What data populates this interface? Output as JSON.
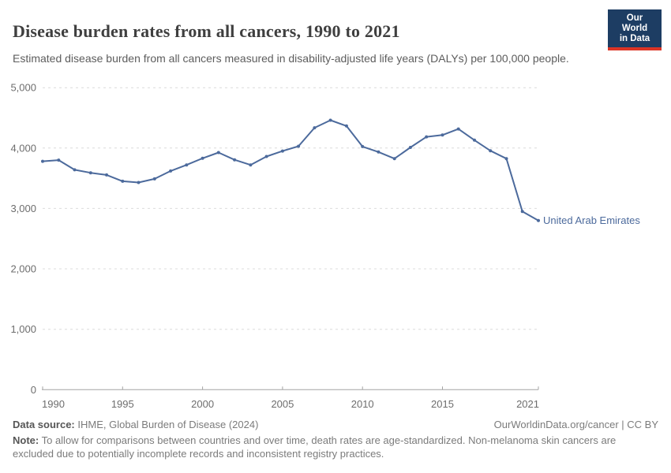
{
  "header": {
    "title": "Disease burden rates from all cancers, 1990 to 2021",
    "subtitle": "Estimated disease burden from all cancers measured in disability-adjusted life years (DALYs) per 100,000 people.",
    "logo_line1": "Our World",
    "logo_line2": "in Data"
  },
  "chart_data": {
    "type": "line",
    "title": "Disease burden rates from all cancers, 1990 to 2021",
    "ylabel": "DALYs per 100,000 people",
    "xlim": [
      1990,
      2021
    ],
    "ylim": [
      0,
      5000
    ],
    "grid": "horizontal dashed",
    "legend_position": "end-of-line label",
    "xticks": [
      1990,
      1995,
      2000,
      2005,
      2010,
      2015,
      2021
    ],
    "yticks": [
      0,
      1000,
      2000,
      3000,
      4000,
      5000
    ],
    "ytick_labels": [
      "0",
      "1,000",
      "2,000",
      "3,000",
      "4,000",
      "5,000"
    ],
    "series": [
      {
        "name": "United Arab Emirates",
        "color": "#4C6A9C",
        "x": [
          1990,
          1991,
          1992,
          1993,
          1994,
          1995,
          1996,
          1997,
          1998,
          1999,
          2000,
          2001,
          2002,
          2003,
          2004,
          2005,
          2006,
          2007,
          2008,
          2009,
          2010,
          2011,
          2012,
          2013,
          2014,
          2015,
          2016,
          2017,
          2018,
          2019,
          2020,
          2021
        ],
        "values": [
          3780,
          3800,
          3640,
          3590,
          3555,
          3450,
          3430,
          3490,
          3620,
          3720,
          3830,
          3925,
          3805,
          3720,
          3860,
          3950,
          4030,
          4335,
          4460,
          4365,
          4025,
          3935,
          3825,
          4010,
          4185,
          4215,
          4315,
          4130,
          3955,
          3825,
          2950,
          2800
        ]
      }
    ]
  },
  "footer": {
    "source_label": "Data source:",
    "source_text": " IHME, Global Burden of Disease (2024)",
    "credit": "OurWorldinData.org/cancer | CC BY",
    "note_label": "Note:",
    "note_text": " To allow for comparisons between countries and over time, death rates are age-standardized. Non-melanoma skin cancers are excluded due to potentially incomplete records and inconsistent registry practices."
  },
  "colors": {
    "series_blue": "#4C6A9C",
    "logo_navy": "#1d3d63",
    "logo_red": "#dc3425",
    "gridline": "#dcdcdc",
    "axis": "#a3a3a3"
  }
}
